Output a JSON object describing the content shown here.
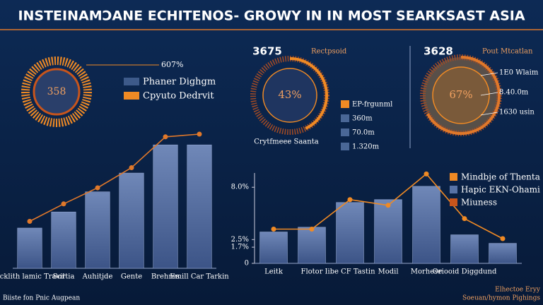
{
  "chart_data": [
    {
      "type": "ring",
      "title": "INSTEINAMƆANE ECHITENOS- GROWY IN IN MOST SEARKSAST ASIA",
      "center_label": "358",
      "callout": "607%",
      "series": [
        {
          "name": "Phaner Dighgm",
          "color": "#3d5a8a"
        },
        {
          "name": "Cpyuto Dedrvit",
          "color": "#f08a24"
        }
      ]
    },
    {
      "type": "gauge",
      "headline": "3675",
      "tag": "Rectpsoid",
      "value": 43,
      "value_label": "43%",
      "ylim": [
        0,
        100
      ],
      "caption": "Crytfmeee Saanta",
      "color": "#f08a24",
      "series": [
        {
          "name": "EP-frgunml",
          "color": "#f08a24"
        },
        {
          "name": "360m",
          "color": "#4a6796"
        },
        {
          "name": "70.0m",
          "color": "#4a6796"
        },
        {
          "name": "1.320m",
          "color": "#4a6796"
        }
      ]
    },
    {
      "type": "gauge",
      "headline": "3628",
      "tag": "Pout Mtcatlan",
      "value": 67,
      "value_label": "67%",
      "ylim": [
        0,
        100
      ],
      "color": "#e0782a",
      "labels": [
        "1E0 Wlaim",
        "8.40.0m",
        "1630 usin"
      ]
    },
    {
      "type": "bar",
      "categories": [
        "Ecklith lamic Travil",
        "Sortia",
        "Auhitjde",
        "Gente",
        "Brehres",
        "Emill Car Tarkin"
      ],
      "ylim": [
        0,
        100
      ],
      "series": [
        {
          "name": null,
          "color": "#5873a6",
          "values": [
            30,
            42,
            57,
            71,
            92,
            92
          ]
        },
        {
          "name": null,
          "color": "#e0782a",
          "values": [
            35,
            48,
            60,
            75,
            98,
            100
          ]
        }
      ]
    },
    {
      "type": "bar",
      "categories": [
        "Leitk",
        "Flotor",
        "Iibe CF Tastin",
        "Modil",
        "Morhese",
        "Oriooid Diggdund",
        null
      ],
      "ylim": [
        0,
        9.5
      ],
      "yticks": [
        0,
        {
          "value": 1.7,
          "label": "1.7%"
        },
        {
          "value": 2.5,
          "label": "2.5%"
        },
        {
          "value": 8.0,
          "label": "8.0%"
        }
      ],
      "series": [
        {
          "name": "Hapic EKN-Ohami",
          "color": "#5873a6",
          "values": [
            3.3,
            3.8,
            6.4,
            6.7,
            8.1,
            3.0,
            2.1
          ]
        },
        {
          "name": "Mindbje of Thenta",
          "color": "#f08a24",
          "values": [
            3.6,
            3.6,
            6.7,
            6.1,
            9.4,
            4.7,
            2.6
          ]
        },
        {
          "name": "Miuness",
          "color": "#c8551c",
          "values": null
        }
      ],
      "footer_left": "Biiste fon Pnic Augpean",
      "footer_right": [
        "Elhectoe Eryy",
        "Soeuan/hymon Pighings"
      ]
    }
  ]
}
